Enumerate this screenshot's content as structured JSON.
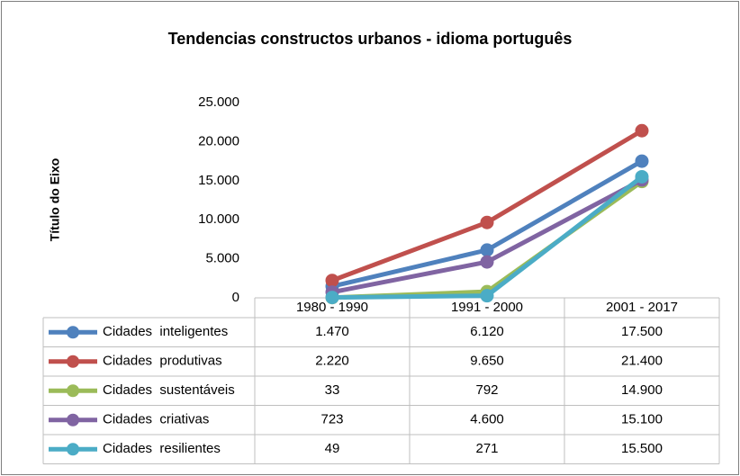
{
  "chart_data": {
    "type": "line",
    "title": "Tendencias constructos urbanos - idioma português",
    "y_axis_label": "Título do Eixo",
    "categories": [
      "1980 - 1990",
      "1991 - 2000",
      "2001 - 2017"
    ],
    "series": [
      {
        "name": "Cidades  inteligentes",
        "color": "#4f81bd",
        "values": [
          1470,
          6120,
          17500
        ],
        "value_labels": [
          "1.470",
          "6.120",
          "17.500"
        ]
      },
      {
        "name": "Cidades  produtivas",
        "color": "#c0504d",
        "values": [
          2220,
          9650,
          21400
        ],
        "value_labels": [
          "2.220",
          "9.650",
          "21.400"
        ]
      },
      {
        "name": "Cidades  sustentáveis",
        "color": "#9bbb59",
        "values": [
          33,
          792,
          14900
        ],
        "value_labels": [
          "33",
          "792",
          "14.900"
        ]
      },
      {
        "name": "Cidades  criativas",
        "color": "#8064a2",
        "values": [
          723,
          4600,
          15100
        ],
        "value_labels": [
          "723",
          "4.600",
          "15.100"
        ]
      },
      {
        "name": "Cidades  resilientes",
        "color": "#4bacc6",
        "values": [
          49,
          271,
          15500
        ],
        "value_labels": [
          "49",
          "271",
          "15.500"
        ]
      }
    ],
    "ylim": [
      0,
      25000
    ],
    "yticks": [
      0,
      {
        "value": 5000,
        "label": "5.000"
      },
      {
        "value": 10000,
        "label": "10.000"
      },
      {
        "value": 15000,
        "label": "15.000"
      },
      {
        "value": 20000,
        "label": "20.000"
      },
      {
        "value": 25000,
        "label": "25.000"
      }
    ],
    "grid": false
  }
}
